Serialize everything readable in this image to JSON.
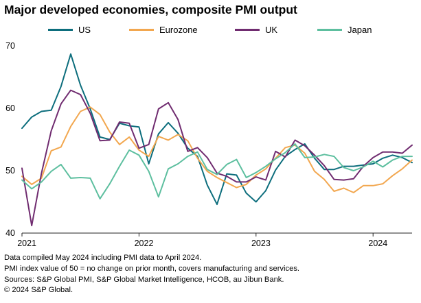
{
  "chart_data": {
    "type": "line",
    "title": "Major developed economies, composite PMI output",
    "xlabel": "",
    "ylabel": "",
    "ylim": [
      40,
      70
    ],
    "yticks": [
      40,
      50,
      60,
      70
    ],
    "xlim": [
      0,
      40
    ],
    "xticks": [
      {
        "label": "2021",
        "pos": 0.5
      },
      {
        "label": "2022",
        "pos": 12.5
      },
      {
        "label": "2023",
        "pos": 24.5
      },
      {
        "label": "2024",
        "pos": 36.5
      }
    ],
    "x_start": "2020-12",
    "x_end": "2024-04",
    "series": [
      {
        "name": "US",
        "color": "#0d6e7d",
        "values": [
          56.8,
          58.6,
          59.5,
          59.7,
          63.5,
          68.7,
          63.7,
          59.9,
          55.4,
          55.0,
          57.6,
          57.2,
          57.0,
          51.1,
          55.9,
          57.7,
          56.0,
          53.6,
          52.3,
          47.7,
          44.6,
          49.5,
          49.3,
          46.4,
          45.0,
          46.8,
          50.1,
          52.3,
          53.4,
          54.3,
          52.0,
          50.2,
          50.2,
          50.7,
          50.7,
          50.9,
          51.1,
          52.0,
          52.5,
          52.1,
          51.3
        ]
      },
      {
        "name": "Eurozone",
        "color": "#f2a74f",
        "values": [
          49.1,
          47.8,
          48.8,
          53.2,
          53.8,
          57.1,
          59.5,
          60.2,
          59.0,
          56.2,
          54.2,
          55.4,
          53.3,
          52.3,
          55.5,
          54.9,
          55.8,
          54.8,
          52.0,
          49.9,
          48.9,
          48.1,
          47.3,
          47.8,
          49.3,
          50.3,
          52.0,
          53.7,
          54.1,
          52.8,
          49.9,
          48.6,
          46.7,
          47.2,
          46.5,
          47.6,
          47.6,
          47.9,
          49.2,
          50.3,
          51.7
        ]
      },
      {
        "name": "UK",
        "color": "#702c70",
        "values": [
          50.4,
          41.2,
          49.6,
          56.4,
          60.7,
          62.9,
          62.2,
          59.2,
          54.8,
          54.9,
          57.8,
          57.6,
          53.6,
          54.2,
          59.9,
          60.9,
          58.2,
          53.1,
          53.7,
          52.1,
          49.6,
          49.1,
          48.2,
          48.2,
          49.0,
          48.5,
          53.1,
          52.2,
          54.9,
          54.0,
          52.5,
          50.8,
          48.6,
          48.5,
          48.7,
          50.7,
          52.1,
          53.0,
          53.0,
          52.8,
          54.1
        ]
      },
      {
        "name": "Japan",
        "color": "#5dbf9f",
        "values": [
          48.5,
          47.1,
          48.2,
          49.9,
          51.0,
          48.8,
          48.9,
          48.8,
          45.5,
          47.9,
          50.7,
          53.3,
          52.5,
          49.9,
          45.8,
          50.3,
          51.1,
          52.3,
          53.0,
          50.2,
          49.4,
          51.0,
          51.8,
          48.9,
          49.7,
          50.7,
          51.9,
          52.9,
          54.3,
          52.1,
          52.2,
          52.6,
          52.3,
          50.5,
          50.0,
          50.6,
          51.5,
          50.6,
          51.7,
          52.3,
          52.3
        ]
      }
    ]
  },
  "footnotes": [
    "Data compiled May 2024 including PMI data to April 2024.",
    "PMI index value of 50 = no change on prior month, covers manufacturing and services.",
    "Sources: S&P Global PMI, S&P Global Market Intelligence, HCOB, au Jibun Bank.",
    "© 2024 S&P Global."
  ]
}
